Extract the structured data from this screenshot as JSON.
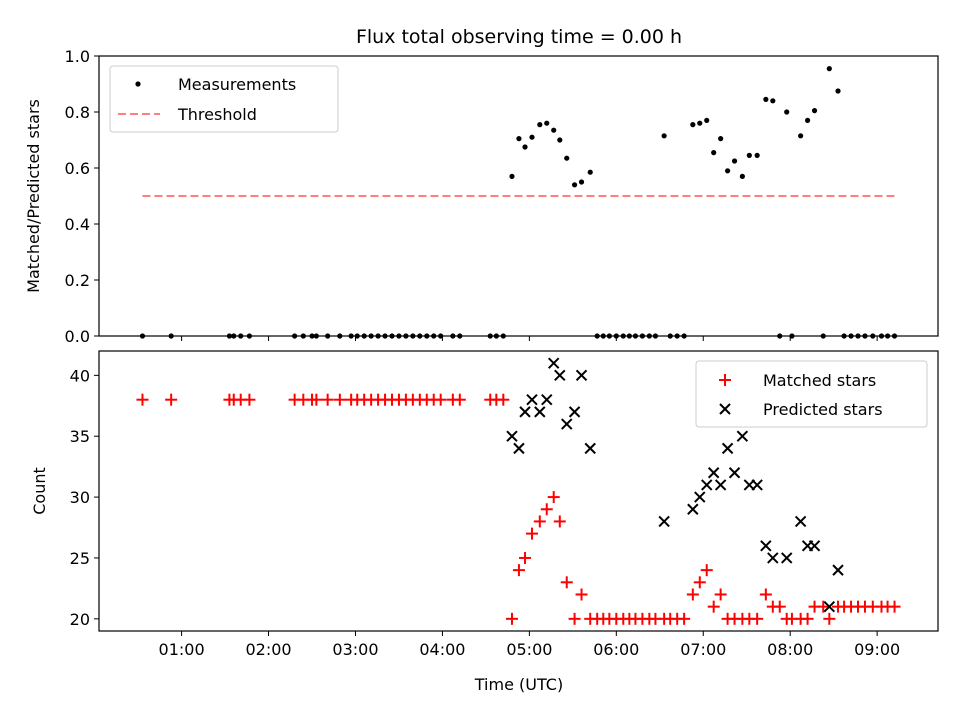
{
  "chart_data": [
    {
      "type": "scatter",
      "title": "Flux total observing time = 0.00 h",
      "xlabel": "",
      "ylabel": "Matched/Predicted stars",
      "ylim": [
        0,
        1
      ],
      "yticks": [
        "0.0",
        "0.2",
        "0.4",
        "0.6",
        "0.8",
        "1.0"
      ],
      "xlim": [
        0.05,
        9.7
      ],
      "legend_position": "top-left",
      "series": [
        {
          "name": "Measurements",
          "marker": "dot",
          "color": "#000000",
          "points": [
            [
              0.55,
              0
            ],
            [
              0.88,
              0
            ],
            [
              1.55,
              0
            ],
            [
              1.6,
              0
            ],
            [
              1.68,
              0
            ],
            [
              1.78,
              0
            ],
            [
              2.3,
              0
            ],
            [
              2.4,
              0
            ],
            [
              2.5,
              0
            ],
            [
              2.55,
              0
            ],
            [
              2.68,
              0
            ],
            [
              2.82,
              0
            ],
            [
              2.95,
              0
            ],
            [
              3.02,
              0
            ],
            [
              3.1,
              0
            ],
            [
              3.18,
              0
            ],
            [
              3.26,
              0
            ],
            [
              3.34,
              0
            ],
            [
              3.42,
              0
            ],
            [
              3.5,
              0
            ],
            [
              3.58,
              0
            ],
            [
              3.66,
              0
            ],
            [
              3.74,
              0
            ],
            [
              3.82,
              0
            ],
            [
              3.9,
              0
            ],
            [
              3.98,
              0
            ],
            [
              4.12,
              0
            ],
            [
              4.2,
              0
            ],
            [
              4.55,
              0
            ],
            [
              4.62,
              0
            ],
            [
              4.7,
              0
            ],
            [
              4.8,
              0.57
            ],
            [
              4.88,
              0.705
            ],
            [
              4.95,
              0.675
            ],
            [
              5.03,
              0.71
            ],
            [
              5.12,
              0.755
            ],
            [
              5.2,
              0.76
            ],
            [
              5.28,
              0.735
            ],
            [
              5.35,
              0.7
            ],
            [
              5.43,
              0.635
            ],
            [
              5.52,
              0.54
            ],
            [
              5.6,
              0.55
            ],
            [
              5.7,
              0.585
            ],
            [
              5.78,
              0
            ],
            [
              5.85,
              0
            ],
            [
              5.92,
              0
            ],
            [
              6.0,
              0
            ],
            [
              6.08,
              0
            ],
            [
              6.15,
              0
            ],
            [
              6.22,
              0
            ],
            [
              6.3,
              0
            ],
            [
              6.38,
              0
            ],
            [
              6.45,
              0
            ],
            [
              6.55,
              0.715
            ],
            [
              6.62,
              0
            ],
            [
              6.7,
              0
            ],
            [
              6.78,
              0
            ],
            [
              6.88,
              0.755
            ],
            [
              6.96,
              0.76
            ],
            [
              7.04,
              0.77
            ],
            [
              7.12,
              0.655
            ],
            [
              7.2,
              0.705
            ],
            [
              7.28,
              0.59
            ],
            [
              7.36,
              0.625
            ],
            [
              7.45,
              0.57
            ],
            [
              7.53,
              0.645
            ],
            [
              7.62,
              0.645
            ],
            [
              7.72,
              0.845
            ],
            [
              7.8,
              0.84
            ],
            [
              7.88,
              0
            ],
            [
              7.96,
              0.8
            ],
            [
              8.02,
              0
            ],
            [
              8.12,
              0.715
            ],
            [
              8.2,
              0.77
            ],
            [
              8.28,
              0.805
            ],
            [
              8.38,
              0
            ],
            [
              8.45,
              0.955
            ],
            [
              8.55,
              0.875
            ],
            [
              8.62,
              0
            ],
            [
              8.7,
              0
            ],
            [
              8.78,
              0
            ],
            [
              8.86,
              0
            ],
            [
              8.95,
              0
            ],
            [
              9.05,
              0
            ],
            [
              9.12,
              0
            ],
            [
              9.2,
              0
            ]
          ]
        },
        {
          "name": "Threshold",
          "marker": "dashed-line",
          "color": "#ff7f7f",
          "points": [
            [
              0.55,
              0.5
            ],
            [
              9.2,
              0.5
            ]
          ]
        }
      ]
    },
    {
      "type": "scatter",
      "title": "",
      "xlabel": "Time (UTC)",
      "ylabel": "Count",
      "ylim": [
        19,
        42
      ],
      "yticks": [
        "20",
        "25",
        "30",
        "35",
        "40"
      ],
      "xlim": [
        0.05,
        9.7
      ],
      "xticks": [
        1,
        2,
        3,
        4,
        5,
        6,
        7,
        8,
        9
      ],
      "xticklabels": [
        "01:00",
        "02:00",
        "03:00",
        "04:00",
        "05:00",
        "06:00",
        "07:00",
        "08:00",
        "09:00"
      ],
      "legend_position": "top-right",
      "series": [
        {
          "name": "Matched stars",
          "marker": "plus",
          "color": "#ff0000",
          "points": [
            [
              0.55,
              38
            ],
            [
              0.88,
              38
            ],
            [
              1.55,
              38
            ],
            [
              1.6,
              38
            ],
            [
              1.68,
              38
            ],
            [
              1.78,
              38
            ],
            [
              2.3,
              38
            ],
            [
              2.4,
              38
            ],
            [
              2.5,
              38
            ],
            [
              2.55,
              38
            ],
            [
              2.68,
              38
            ],
            [
              2.82,
              38
            ],
            [
              2.95,
              38
            ],
            [
              3.02,
              38
            ],
            [
              3.1,
              38
            ],
            [
              3.18,
              38
            ],
            [
              3.26,
              38
            ],
            [
              3.34,
              38
            ],
            [
              3.42,
              38
            ],
            [
              3.5,
              38
            ],
            [
              3.58,
              38
            ],
            [
              3.66,
              38
            ],
            [
              3.74,
              38
            ],
            [
              3.82,
              38
            ],
            [
              3.9,
              38
            ],
            [
              3.98,
              38
            ],
            [
              4.12,
              38
            ],
            [
              4.2,
              38
            ],
            [
              4.55,
              38
            ],
            [
              4.62,
              38
            ],
            [
              4.7,
              38
            ],
            [
              4.8,
              20
            ],
            [
              4.88,
              24
            ],
            [
              4.95,
              25
            ],
            [
              5.03,
              27
            ],
            [
              5.12,
              28
            ],
            [
              5.2,
              29
            ],
            [
              5.28,
              30
            ],
            [
              5.35,
              28
            ],
            [
              5.43,
              23
            ],
            [
              5.52,
              20
            ],
            [
              5.6,
              22
            ],
            [
              5.7,
              20
            ],
            [
              5.78,
              20
            ],
            [
              5.85,
              20
            ],
            [
              5.92,
              20
            ],
            [
              6.0,
              20
            ],
            [
              6.08,
              20
            ],
            [
              6.15,
              20
            ],
            [
              6.22,
              20
            ],
            [
              6.3,
              20
            ],
            [
              6.38,
              20
            ],
            [
              6.45,
              20
            ],
            [
              6.55,
              20
            ],
            [
              6.62,
              20
            ],
            [
              6.7,
              20
            ],
            [
              6.78,
              20
            ],
            [
              6.88,
              22
            ],
            [
              6.96,
              23
            ],
            [
              7.04,
              24
            ],
            [
              7.12,
              21
            ],
            [
              7.2,
              22
            ],
            [
              7.28,
              20
            ],
            [
              7.36,
              20
            ],
            [
              7.45,
              20
            ],
            [
              7.53,
              20
            ],
            [
              7.62,
              20
            ],
            [
              7.72,
              22
            ],
            [
              7.8,
              21
            ],
            [
              7.88,
              21
            ],
            [
              7.96,
              20
            ],
            [
              8.02,
              20
            ],
            [
              8.12,
              20
            ],
            [
              8.2,
              20
            ],
            [
              8.28,
              21
            ],
            [
              8.38,
              21
            ],
            [
              8.45,
              20
            ],
            [
              8.55,
              21
            ],
            [
              8.62,
              21
            ],
            [
              8.7,
              21
            ],
            [
              8.78,
              21
            ],
            [
              8.86,
              21
            ],
            [
              8.95,
              21
            ],
            [
              9.05,
              21
            ],
            [
              9.12,
              21
            ],
            [
              9.2,
              21
            ]
          ]
        },
        {
          "name": "Predicted stars",
          "marker": "x",
          "color": "#000000",
          "points": [
            [
              4.8,
              35
            ],
            [
              4.88,
              34
            ],
            [
              4.95,
              37
            ],
            [
              5.03,
              38
            ],
            [
              5.12,
              37
            ],
            [
              5.2,
              38
            ],
            [
              5.28,
              41
            ],
            [
              5.35,
              40
            ],
            [
              5.43,
              36
            ],
            [
              5.52,
              37
            ],
            [
              5.6,
              40
            ],
            [
              5.7,
              34
            ],
            [
              6.55,
              28
            ],
            [
              6.88,
              29
            ],
            [
              6.96,
              30
            ],
            [
              7.04,
              31
            ],
            [
              7.12,
              32
            ],
            [
              7.2,
              31
            ],
            [
              7.28,
              34
            ],
            [
              7.36,
              32
            ],
            [
              7.45,
              35
            ],
            [
              7.53,
              31
            ],
            [
              7.62,
              31
            ],
            [
              7.72,
              26
            ],
            [
              7.8,
              25
            ],
            [
              7.96,
              25
            ],
            [
              8.12,
              28
            ],
            [
              8.2,
              26
            ],
            [
              8.28,
              26
            ],
            [
              8.45,
              21
            ],
            [
              8.55,
              24
            ]
          ]
        }
      ]
    }
  ]
}
